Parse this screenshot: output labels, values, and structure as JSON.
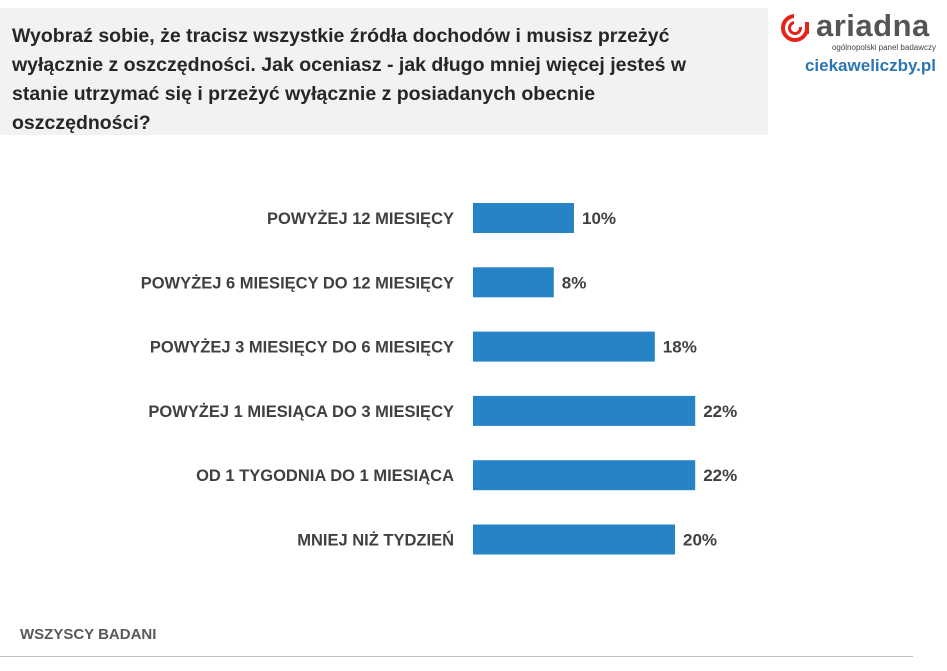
{
  "question": {
    "lines": [
      "Wyobraź sobie, że tracisz wszystkie źródła dochodów i musisz przeżyć",
      "wyłącznie z oszczędności. Jak oceniasz - jak długo mniej więcej jesteś w",
      "stanie utrzymać się i przeżyć wyłącznie z posiadanych obecnie",
      "oszczędności?"
    ]
  },
  "brand": {
    "name": "ariadna",
    "tagline": "ogólnopolski panel badawczy",
    "site": "ciekaweliczby.pl",
    "logo_color": "#e2231a",
    "text_color": "#555555",
    "site_color": "#2e75b6"
  },
  "footer": {
    "label": "WSZYSCY BADANI"
  },
  "chart_data": {
    "type": "bar",
    "orientation": "horizontal",
    "categories": [
      "POWYŻEJ 12 MIESIĘCY",
      "POWYŻEJ 6 MIESIĘCY DO 12 MIESIĘCY",
      "POWYŻEJ 3 MIESIĘCY DO 6 MIESIĘCY",
      "POWYŻEJ 1 MIESIĄCA DO 3 MIESIĘCY",
      "OD 1 TYGODNIA DO 1 MIESIĄCA",
      "MNIEJ NIŻ TYDZIEŃ"
    ],
    "values": [
      10,
      8,
      18,
      22,
      22,
      20
    ],
    "value_suffix": "%",
    "bar_color": "#2683c6",
    "xlim": [
      0,
      30
    ],
    "grid": false,
    "legend": "none"
  }
}
